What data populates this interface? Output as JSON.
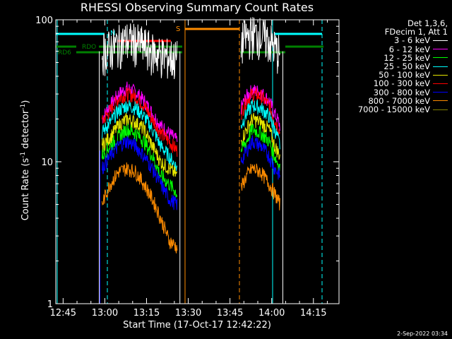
{
  "title": "RHESSI Observing Summary Count Rates",
  "xlabel": "Start Time (17-Oct-17 12:42:22)",
  "ylabel_main": "Count Rate (s",
  "ylabel_sup1": "-1",
  "ylabel_mid": " detector",
  "ylabel_sup2": "-1",
  "ylabel_end": ")",
  "footer": "2-Sep-2022 03:34",
  "legend": {
    "header1": "Det 1,3,6,",
    "header2": "FDecim 1, Att 1",
    "entries": [
      {
        "label": "3 - 6 keV",
        "color": "#ffffff"
      },
      {
        "label": "6 - 12 keV",
        "color": "#ff00ff"
      },
      {
        "label": "12 - 25 keV",
        "color": "#00ff00"
      },
      {
        "label": "25 - 50 keV",
        "color": "#00ffff"
      },
      {
        "label": "50 - 100 keV",
        "color": "#e6e600"
      },
      {
        "label": "100 - 300 keV",
        "color": "#ff0000"
      },
      {
        "label": "300 - 800 keV",
        "color": "#0000ff"
      },
      {
        "label": "800 - 7000 keV",
        "color": "#ff8c00"
      },
      {
        "label": "7000 - 15000 keV",
        "color": "#808000"
      }
    ]
  },
  "flag_labels": {
    "n": "N",
    "s": "S",
    "rdo": "RDO",
    "rd6": "RD6"
  },
  "flag_colors": {
    "night": "#00ffff",
    "saa": "#ff8c00",
    "flag_red": "#ff0000",
    "flag_green": "#008000"
  },
  "chart_data": {
    "type": "line",
    "x_unit": "time (UT, 17-Oct-17)",
    "xlim": [
      "12:42",
      "14:24"
    ],
    "x_ticks": [
      "12:45",
      "13:00",
      "13:15",
      "13:30",
      "13:45",
      "14:00",
      "14:15"
    ],
    "y_scale": "log",
    "ylim": [
      1,
      100
    ],
    "y_ticks": [
      "1",
      "10",
      "100"
    ],
    "data_gaps": [
      [
        "12:58",
        "13:29"
      ],
      [
        "13:29",
        "13:49"
      ]
    ],
    "series": [
      {
        "name": "6 - 12 keV",
        "color": "#ff00ff",
        "x": [
          "12:59",
          "13:02",
          "13:05",
          "13:08",
          "13:11",
          "13:14",
          "13:17",
          "13:20",
          "13:23",
          "13:26",
          "13:49",
          "13:51",
          "13:53",
          "13:56",
          "13:59",
          "14:01",
          "14:03"
        ],
        "values": [
          20,
          25,
          30,
          33,
          31,
          27,
          22,
          18,
          16,
          14,
          24,
          29,
          32,
          31,
          27,
          22,
          18
        ]
      },
      {
        "name": "100 - 300 keV",
        "color": "#ff0000",
        "x": [
          "12:59",
          "13:02",
          "13:05",
          "13:08",
          "13:11",
          "13:14",
          "13:17",
          "13:20",
          "13:23",
          "13:26",
          "13:49",
          "13:51",
          "13:53",
          "13:56",
          "13:59",
          "14:01",
          "14:03"
        ],
        "values": [
          19,
          23,
          28,
          30,
          29,
          25,
          20,
          16,
          14,
          12,
          22,
          27,
          30,
          29,
          25,
          20,
          16
        ]
      },
      {
        "name": "25 - 50 keV",
        "color": "#00ffff",
        "x": [
          "12:59",
          "13:02",
          "13:05",
          "13:08",
          "13:11",
          "13:14",
          "13:17",
          "13:20",
          "13:23",
          "13:26",
          "13:49",
          "13:51",
          "13:53",
          "13:56",
          "13:59",
          "14:01",
          "14:03"
        ],
        "values": [
          16,
          19,
          23,
          25,
          24,
          21,
          17,
          13,
          11,
          9,
          18,
          22,
          25,
          24,
          21,
          17,
          13
        ]
      },
      {
        "name": "50 - 100 keV",
        "color": "#e6e600",
        "x": [
          "12:59",
          "13:02",
          "13:05",
          "13:08",
          "13:11",
          "13:14",
          "13:17",
          "13:20",
          "13:23",
          "13:26",
          "13:49",
          "13:51",
          "13:53",
          "13:56",
          "13:59",
          "14:01",
          "14:03"
        ],
        "values": [
          13,
          15,
          18,
          20,
          19,
          17,
          13,
          10,
          9,
          8,
          14,
          17,
          20,
          19,
          17,
          13,
          11
        ]
      },
      {
        "name": "12 - 25 keV",
        "color": "#00ff00",
        "x": [
          "12:59",
          "13:02",
          "13:05",
          "13:08",
          "13:11",
          "13:14",
          "13:17",
          "13:20",
          "13:23",
          "13:26",
          "13:49",
          "13:51",
          "13:53",
          "13:56",
          "13:59",
          "14:01",
          "14:03"
        ],
        "values": [
          11,
          13,
          15,
          17,
          16,
          14,
          11,
          8,
          7,
          6,
          12,
          14,
          17,
          16,
          14,
          11,
          9
        ]
      },
      {
        "name": "300 - 800 keV",
        "color": "#0000ff",
        "x": [
          "12:59",
          "13:02",
          "13:05",
          "13:08",
          "13:11",
          "13:14",
          "13:17",
          "13:20",
          "13:23",
          "13:26",
          "13:49",
          "13:51",
          "13:53",
          "13:56",
          "13:59",
          "14:01",
          "14:03"
        ],
        "values": [
          9,
          11,
          13,
          14,
          13,
          11,
          9,
          7,
          5.5,
          5,
          10,
          12,
          14,
          13,
          11,
          9,
          8
        ]
      },
      {
        "name": "800 - 7000 keV",
        "color": "#ff8c00",
        "x": [
          "12:59",
          "13:02",
          "13:05",
          "13:08",
          "13:11",
          "13:14",
          "13:17",
          "13:20",
          "13:23",
          "13:26",
          "13:49",
          "13:51",
          "13:53",
          "13:56",
          "13:59",
          "14:01",
          "14:03"
        ],
        "values": [
          5,
          7,
          8.5,
          9,
          8.5,
          7,
          5.5,
          4,
          2.8,
          2.5,
          6.5,
          8,
          9,
          8.5,
          7,
          6,
          5
        ]
      },
      {
        "name": "3 - 6 keV",
        "color": "#ffffff",
        "x": [
          "12:59",
          "13:02",
          "13:05",
          "13:08",
          "13:11",
          "13:14",
          "13:17",
          "13:20",
          "13:23",
          "13:26",
          "13:49",
          "13:51",
          "13:53",
          "13:56",
          "13:59",
          "14:01",
          "14:03"
        ],
        "values": [
          60,
          63,
          68,
          72,
          70,
          66,
          60,
          57,
          55,
          53,
          70,
          76,
          80,
          78,
          72,
          64,
          58
        ]
      }
    ]
  }
}
